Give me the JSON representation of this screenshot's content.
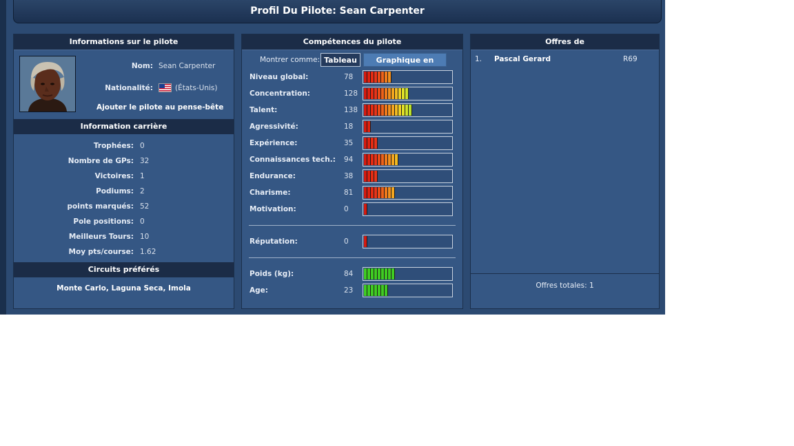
{
  "title": "Profil Du Pilote: Sean Carpenter",
  "info": {
    "header": "Informations sur le pilote",
    "name_label": "Nom:",
    "name_value": "Sean Carpenter",
    "nationality_label": "Nationalité:",
    "nationality_value": "(États-Unis)",
    "add_watchlist": "Ajouter le pilote au pense-bête",
    "flag_icon": "us-flag-icon"
  },
  "career": {
    "header": "Information carrière",
    "rows": [
      {
        "label": "Trophées:",
        "value": "0"
      },
      {
        "label": "Nombre de GPs:",
        "value": "32"
      },
      {
        "label": "Victoires:",
        "value": "1"
      },
      {
        "label": "Podiums:",
        "value": "2"
      },
      {
        "label": "points marqués:",
        "value": "52"
      },
      {
        "label": "Pole positions:",
        "value": "0"
      },
      {
        "label": "Meilleurs Tours:",
        "value": "10"
      },
      {
        "label": "Moy pts/course:",
        "value": "1.62"
      }
    ]
  },
  "circuits": {
    "header": "Circuits préférés",
    "value": "Monte Carlo, Laguna Seca, Imola"
  },
  "skills": {
    "header": "Compétences du pilote",
    "show_as": "Montrer comme:",
    "btn_table": "Tableau",
    "btn_radar": "Graphique en radar",
    "rows": [
      {
        "label": "Niveau global:",
        "value": "78",
        "segments": 8,
        "kind": "heat"
      },
      {
        "label": "Concentration:",
        "value": "128",
        "segments": 13,
        "kind": "heat"
      },
      {
        "label": "Talent:",
        "value": "138",
        "segments": 14,
        "kind": "heat"
      },
      {
        "label": "Agressivité:",
        "value": "18",
        "segments": 2,
        "kind": "heat"
      },
      {
        "label": "Expérience:",
        "value": "35",
        "segments": 4,
        "kind": "heat"
      },
      {
        "label": "Connaissances tech.:",
        "value": "94",
        "segments": 10,
        "kind": "heat"
      },
      {
        "label": "Endurance:",
        "value": "38",
        "segments": 4,
        "kind": "heat"
      },
      {
        "label": "Charisme:",
        "value": "81",
        "segments": 9,
        "kind": "heat"
      },
      {
        "label": "Motivation:",
        "value": "0",
        "segments": 1,
        "kind": "heat"
      }
    ],
    "reputation": {
      "label": "Réputation:",
      "value": "0",
      "segments": 1,
      "kind": "heat"
    },
    "physical": [
      {
        "label": "Poids (kg):",
        "value": "84",
        "segments": 9,
        "kind": "green"
      },
      {
        "label": "Age:",
        "value": "23",
        "segments": 7,
        "kind": "green"
      }
    ]
  },
  "offers": {
    "header": "Offres de",
    "items": [
      {
        "rank": "1.",
        "name": "Pascal Gerard",
        "code": "R69"
      }
    ],
    "total": "Offres totales: 1"
  },
  "colors": {
    "heat": [
      "#d41a0f",
      "#de2210",
      "#e52b12",
      "#e8341a",
      "#ea4b17",
      "#ee6219",
      "#f07a1c",
      "#f3901e",
      "#f4a51f",
      "#f2bb22",
      "#efd025",
      "#e0e027",
      "#cfe22a",
      "#b9e02c"
    ],
    "green": "#3fcc22"
  }
}
